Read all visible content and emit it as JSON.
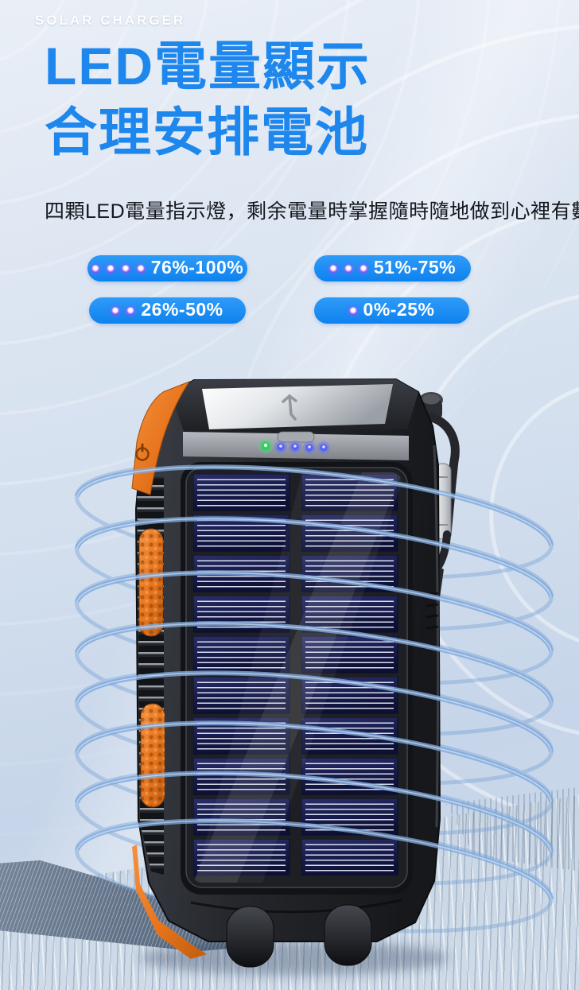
{
  "brand": {
    "label": "SOLAR CHARGER"
  },
  "heading": {
    "line1": "LED電量顯示",
    "line2": "合理安排電池"
  },
  "subtitle": "四顆LED電量指示燈，剩余電量時掌握隨時隨地做到心裡有數",
  "battery_levels": [
    {
      "dots": 4,
      "label": "76%-100%"
    },
    {
      "dots": 3,
      "label": "51%-75%"
    },
    {
      "dots": 2,
      "label": "26%-50%"
    },
    {
      "dots": 1,
      "label": "0%-25%"
    }
  ],
  "product": {
    "type": "solar-power-bank",
    "status_leds": {
      "green": 1,
      "blue": 4
    }
  },
  "colors": {
    "heading_blue": "#1d87ee",
    "pill_blue": "#0d82ef",
    "led_dot_purple": "#7b2ee8",
    "device_orange": "#e8761e",
    "solar_cell_navy": "#1a1e50",
    "ring_blue": "#7fa9dc",
    "status_led_green": "#2fcf5f",
    "status_led_blue": "#5762f2"
  }
}
